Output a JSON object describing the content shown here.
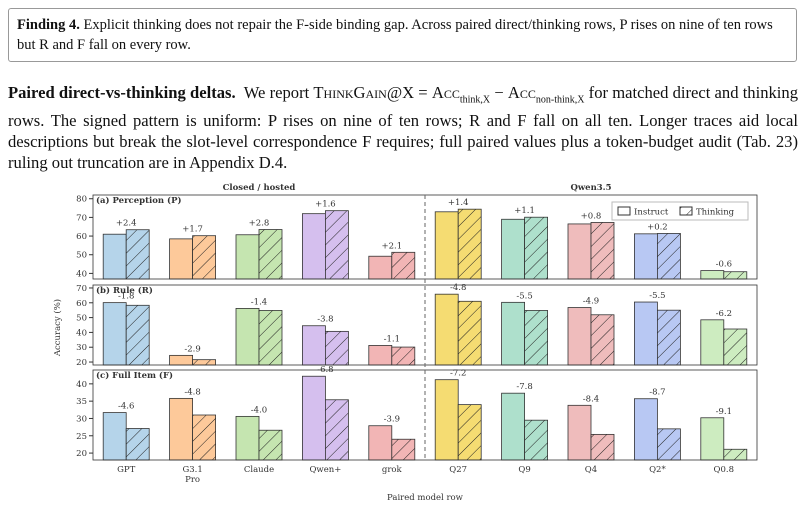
{
  "finding": {
    "label": "Finding 4.",
    "text": "Explicit thinking does not repair the F-side binding gap. Across paired direct/thinking rows, P rises on nine of ten rows but R and F fall on every row."
  },
  "paragraph": {
    "heading": "Paired direct-vs-thinking deltas.",
    "parts": [
      "We report ",
      "ThinkGain",
      "@X = ",
      "Acc",
      "think,X",
      " − ",
      "Acc",
      "non-think,X",
      " for matched direct and thinking rows. The signed pattern is uniform: P rises on nine of ten rows; R and F fall on all ten. Longer traces aid local descriptions but break the slot-level correspondence F requires; full paired values plus a token-budget audit (Tab. 23) ruling out truncation are in Appendix D.4."
    ]
  },
  "chart_data": {
    "type": "bar",
    "x_label": "Paired model row",
    "y_label": "Accuracy (%)",
    "groups": [
      "Closed / hosted",
      "Qwen3.5"
    ],
    "legend": [
      "Instruct",
      "Thinking"
    ],
    "categories": [
      "GPT",
      "G3.1 Pro",
      "Claude",
      "Qwen+",
      "grok",
      "Q27",
      "Q9",
      "Q4",
      "Q2*",
      "Q0.8"
    ],
    "colors": [
      "#b5d4ea",
      "#fdc99a",
      "#c5e5b0",
      "#d5bfee",
      "#f2b5b5",
      "#f5dc72",
      "#aee0cc",
      "#efbcbc",
      "#b8c8f3",
      "#cdecc0"
    ],
    "panels": [
      {
        "title": "(a) Perception (P)",
        "ylim": [
          37,
          82
        ],
        "yticks": [
          40,
          50,
          60,
          70,
          80
        ],
        "series": [
          {
            "values": [
              61.0,
              58.5,
              60.7,
              72.0,
              49.2,
              73.0,
              69.0,
              66.5,
              61.2,
              41.5
            ]
          },
          {
            "values": [
              63.4,
              60.2,
              63.5,
              73.6,
              51.3,
              74.4,
              70.1,
              67.3,
              61.4,
              40.9
            ]
          }
        ],
        "delta_labels": [
          "+2.4",
          "+1.7",
          "+2.8",
          "+1.6",
          "+2.1",
          "+1.4",
          "+1.1",
          "+0.8",
          "+0.2",
          "-0.6"
        ]
      },
      {
        "title": "(b) Rule (R)",
        "ylim": [
          18,
          72
        ],
        "yticks": [
          20,
          30,
          40,
          50,
          60,
          70
        ],
        "series": [
          {
            "values": [
              60.1,
              24.5,
              56.2,
              44.5,
              31.2,
              65.8,
              60.3,
              56.8,
              60.5,
              48.5
            ]
          },
          {
            "values": [
              58.3,
              21.6,
              54.8,
              40.7,
              30.1,
              61.0,
              54.8,
              51.9,
              55.0,
              42.3
            ]
          }
        ],
        "delta_labels": [
          "-1.8",
          "-2.9",
          "-1.4",
          "-3.8",
          "-1.1",
          "-4.8",
          "-5.5",
          "-4.9",
          "-5.5",
          "-6.2"
        ]
      },
      {
        "title": "(c) Full Item (F)",
        "ylim": [
          18,
          44
        ],
        "yticks": [
          20,
          25,
          30,
          35,
          40
        ],
        "series": [
          {
            "values": [
              31.7,
              35.8,
              30.6,
              42.2,
              27.9,
              41.2,
              37.3,
              33.8,
              35.7,
              30.2
            ]
          },
          {
            "values": [
              27.1,
              31.0,
              26.6,
              35.4,
              24.0,
              34.0,
              29.5,
              25.4,
              27.0,
              21.1
            ]
          }
        ],
        "delta_labels": [
          "-4.6",
          "-4.8",
          "-4.0",
          "-6.8",
          "-3.9",
          "-7.2",
          "-7.8",
          "-8.4",
          "-8.7",
          "-9.1"
        ]
      }
    ]
  }
}
